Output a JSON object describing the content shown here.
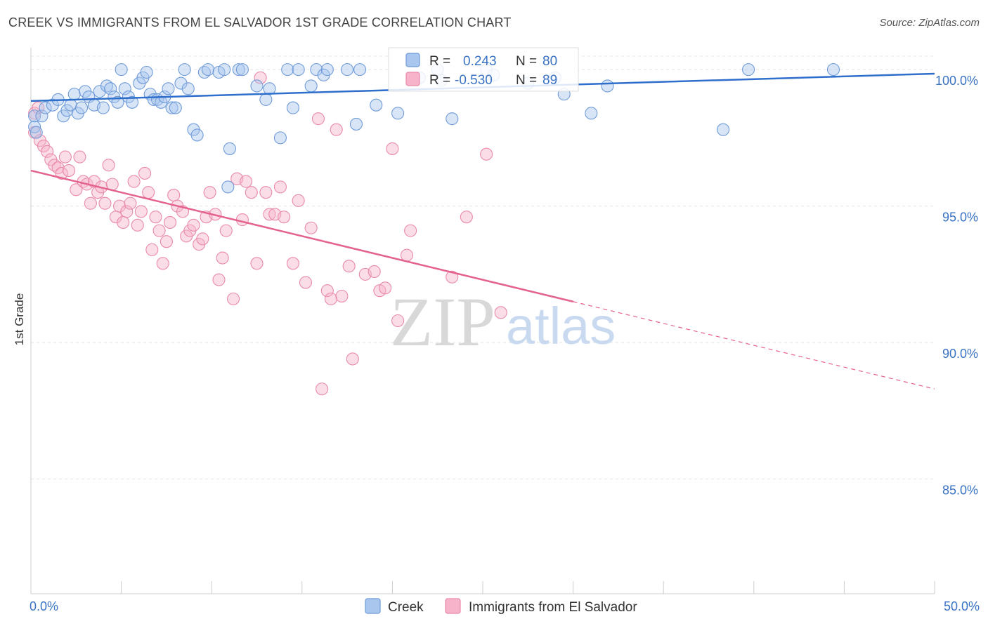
{
  "title": "CREEK VS IMMIGRANTS FROM EL SALVADOR 1ST GRADE CORRELATION CHART",
  "source": "Source: ZipAtlas.com",
  "watermark": {
    "zip": "ZIP",
    "atlas": "atlas"
  },
  "colors": {
    "creek_fill": "#a9c6ee",
    "creek_stroke": "#6f9bd8",
    "creek_line": "#2f6fcc",
    "salv_fill": "#f6b3c9",
    "salv_stroke": "#e98aa9",
    "salv_line": "#e4628e",
    "label": "#3a73c4",
    "grid": "#e4e4e4"
  },
  "legend_box": {
    "r_label": "R =",
    "n_label": "N =",
    "creek": {
      "r": "0.243",
      "n": "80"
    },
    "salv": {
      "r": "-0.530",
      "n": "89"
    }
  },
  "chart_data": {
    "type": "scatter",
    "title": "CREEK VS IMMIGRANTS FROM EL SALVADOR 1ST GRADE CORRELATION CHART",
    "xlabel": "",
    "ylabel": "1st Grade",
    "xlim": [
      0,
      50
    ],
    "ylim": [
      80.8,
      100.8
    ],
    "x_tick_labels": [
      "0.0%",
      "50.0%"
    ],
    "y_ticks": [
      85,
      90,
      95,
      100
    ],
    "y_tick_labels": [
      "85.0%",
      "90.0%",
      "95.0%",
      "100.0%"
    ],
    "grid": true,
    "legend_position": "bottom-center",
    "series": [
      {
        "name": "Creek",
        "r": 0.243,
        "n": 80,
        "trend": {
          "x0": 0,
          "y0": 98.85,
          "x1": 50,
          "y1": 99.85
        },
        "points": [
          [
            0.2,
            98.3
          ],
          [
            0.2,
            97.9
          ],
          [
            0.3,
            97.7
          ],
          [
            0.6,
            98.3
          ],
          [
            0.8,
            98.6
          ],
          [
            1.2,
            98.7
          ],
          [
            1.5,
            98.9
          ],
          [
            1.8,
            98.3
          ],
          [
            2.0,
            98.5
          ],
          [
            2.2,
            98.7
          ],
          [
            2.4,
            99.1
          ],
          [
            2.6,
            98.4
          ],
          [
            2.8,
            98.6
          ],
          [
            3.0,
            99.2
          ],
          [
            3.2,
            99.0
          ],
          [
            3.5,
            98.7
          ],
          [
            3.8,
            99.2
          ],
          [
            4.0,
            98.6
          ],
          [
            4.2,
            99.4
          ],
          [
            4.4,
            99.3
          ],
          [
            4.6,
            99.0
          ],
          [
            4.8,
            98.8
          ],
          [
            5.0,
            100.0
          ],
          [
            5.2,
            99.3
          ],
          [
            5.4,
            99.0
          ],
          [
            5.6,
            98.8
          ],
          [
            6.0,
            99.5
          ],
          [
            6.2,
            99.7
          ],
          [
            6.4,
            99.9
          ],
          [
            6.6,
            99.1
          ],
          [
            6.8,
            98.9
          ],
          [
            7.0,
            98.9
          ],
          [
            7.2,
            98.8
          ],
          [
            7.4,
            99.0
          ],
          [
            7.6,
            99.3
          ],
          [
            7.8,
            98.6
          ],
          [
            8.0,
            98.6
          ],
          [
            8.3,
            99.5
          ],
          [
            8.5,
            100.0
          ],
          [
            8.7,
            99.3
          ],
          [
            9.0,
            97.8
          ],
          [
            9.2,
            97.6
          ],
          [
            9.6,
            99.9
          ],
          [
            9.8,
            100.0
          ],
          [
            10.4,
            99.9
          ],
          [
            10.7,
            100.0
          ],
          [
            10.9,
            95.7
          ],
          [
            11.0,
            97.1
          ],
          [
            11.5,
            100.0
          ],
          [
            11.7,
            100.0
          ],
          [
            12.5,
            99.4
          ],
          [
            13.0,
            98.9
          ],
          [
            13.2,
            99.3
          ],
          [
            13.8,
            97.5
          ],
          [
            14.2,
            100.0
          ],
          [
            14.5,
            98.6
          ],
          [
            14.8,
            100.0
          ],
          [
            15.5,
            99.4
          ],
          [
            15.8,
            100.0
          ],
          [
            16.2,
            99.8
          ],
          [
            16.4,
            100.0
          ],
          [
            17.5,
            100.0
          ],
          [
            18.0,
            98.0
          ],
          [
            18.2,
            100.0
          ],
          [
            19.1,
            98.7
          ],
          [
            20.3,
            98.4
          ],
          [
            21.5,
            99.7
          ],
          [
            22.5,
            100.0
          ],
          [
            22.7,
            99.6
          ],
          [
            23.3,
            98.2
          ],
          [
            25.2,
            100.0
          ],
          [
            25.6,
            99.8
          ],
          [
            27.5,
            99.5
          ],
          [
            29.0,
            99.7
          ],
          [
            29.5,
            99.1
          ],
          [
            31.0,
            98.4
          ],
          [
            31.9,
            99.4
          ],
          [
            38.3,
            97.8
          ],
          [
            39.7,
            100.0
          ],
          [
            44.4,
            100.0
          ]
        ]
      },
      {
        "name": "Immigrants from El Salvador",
        "r": -0.53,
        "n": 89,
        "trend": {
          "x0": 0,
          "y0": 96.3,
          "x1": 30,
          "y1": 91.5
        },
        "trend_dashed": {
          "x0": 30,
          "y0": 91.5,
          "x1": 50,
          "y1": 88.3
        },
        "points": [
          [
            0.2,
            98.4
          ],
          [
            0.2,
            97.7
          ],
          [
            0.5,
            97.4
          ],
          [
            0.7,
            97.2
          ],
          [
            0.9,
            97.0
          ],
          [
            1.1,
            96.7
          ],
          [
            1.3,
            96.5
          ],
          [
            1.5,
            96.4
          ],
          [
            1.7,
            96.2
          ],
          [
            1.9,
            96.8
          ],
          [
            2.1,
            96.3
          ],
          [
            2.5,
            95.6
          ],
          [
            2.7,
            96.8
          ],
          [
            2.9,
            95.9
          ],
          [
            3.1,
            95.8
          ],
          [
            3.3,
            95.1
          ],
          [
            3.5,
            95.9
          ],
          [
            3.7,
            95.5
          ],
          [
            3.9,
            95.7
          ],
          [
            4.1,
            95.1
          ],
          [
            4.3,
            96.5
          ],
          [
            4.5,
            95.8
          ],
          [
            4.7,
            94.6
          ],
          [
            4.9,
            95.0
          ],
          [
            5.1,
            94.4
          ],
          [
            5.3,
            94.8
          ],
          [
            5.5,
            95.1
          ],
          [
            5.7,
            95.9
          ],
          [
            5.9,
            94.3
          ],
          [
            6.1,
            94.8
          ],
          [
            6.3,
            96.2
          ],
          [
            6.5,
            95.5
          ],
          [
            6.7,
            93.4
          ],
          [
            6.9,
            94.6
          ],
          [
            7.1,
            94.1
          ],
          [
            7.3,
            92.9
          ],
          [
            7.5,
            93.7
          ],
          [
            7.7,
            94.4
          ],
          [
            7.9,
            95.4
          ],
          [
            8.1,
            95.0
          ],
          [
            8.4,
            94.8
          ],
          [
            8.6,
            93.9
          ],
          [
            8.8,
            94.1
          ],
          [
            9.0,
            94.3
          ],
          [
            9.3,
            93.6
          ],
          [
            9.5,
            93.8
          ],
          [
            9.7,
            94.6
          ],
          [
            9.9,
            95.5
          ],
          [
            10.2,
            94.7
          ],
          [
            10.4,
            92.3
          ],
          [
            10.6,
            93.1
          ],
          [
            10.8,
            94.1
          ],
          [
            11.2,
            91.6
          ],
          [
            11.4,
            96.0
          ],
          [
            11.7,
            94.5
          ],
          [
            11.9,
            95.9
          ],
          [
            12.2,
            95.5
          ],
          [
            12.5,
            92.9
          ],
          [
            12.7,
            99.7
          ],
          [
            13.0,
            95.5
          ],
          [
            13.2,
            94.7
          ],
          [
            13.5,
            94.7
          ],
          [
            13.8,
            95.7
          ],
          [
            14.0,
            94.6
          ],
          [
            14.5,
            92.9
          ],
          [
            14.8,
            95.2
          ],
          [
            15.2,
            92.2
          ],
          [
            15.5,
            94.2
          ],
          [
            15.9,
            98.2
          ],
          [
            16.1,
            88.3
          ],
          [
            16.4,
            91.9
          ],
          [
            16.6,
            91.6
          ],
          [
            16.9,
            97.8
          ],
          [
            17.2,
            91.7
          ],
          [
            17.6,
            92.8
          ],
          [
            17.8,
            89.4
          ],
          [
            18.5,
            92.5
          ],
          [
            19.0,
            92.6
          ],
          [
            19.3,
            91.9
          ],
          [
            19.6,
            92.0
          ],
          [
            20.0,
            97.1
          ],
          [
            20.3,
            90.8
          ],
          [
            20.8,
            93.2
          ],
          [
            21.0,
            94.1
          ],
          [
            23.3,
            92.4
          ],
          [
            24.1,
            94.6
          ],
          [
            25.2,
            96.9
          ],
          [
            26.0,
            91.1
          ],
          [
            0.4,
            98.6
          ]
        ]
      }
    ]
  }
}
